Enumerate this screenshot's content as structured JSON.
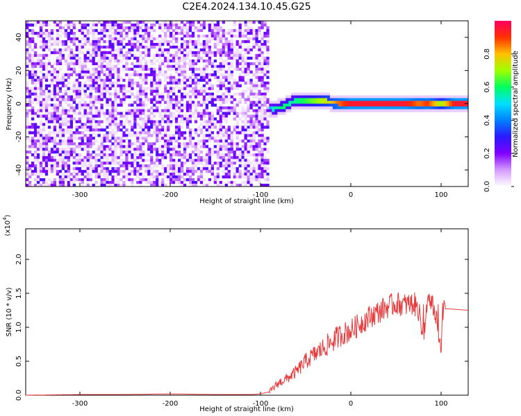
{
  "title": "C2E4.2024.134.10.45.G25",
  "chart_data": [
    {
      "type": "heatmap",
      "title": "C2E4.2024.134.10.45.G25",
      "xlabel": "Height of straight line (km)",
      "ylabel": "Frequency (Hz)",
      "xlim": [
        -360,
        130
      ],
      "ylim": [
        -50,
        50
      ],
      "x_ticks": [
        -300,
        -200,
        -100,
        0,
        100
      ],
      "y_ticks": [
        -40,
        -20,
        0,
        20,
        40
      ],
      "colorbar": {
        "label": "Normalized spectral amplitude",
        "range": [
          0,
          1
        ],
        "ticks": [
          "0.0",
          "0.2",
          "0.4",
          "0.6",
          "0.8"
        ],
        "colormap": [
          "#ffffff",
          "#d59bff",
          "#7f00ff",
          "#2a1aff",
          "#0080ff",
          "#00e0ff",
          "#00ff60",
          "#a0ff00",
          "#ffc000",
          "#ff3000",
          "#ff0060"
        ]
      },
      "noise_region_x": [
        -360,
        -90
      ],
      "noise_level": 0.15,
      "signal_band_x": [
        -90,
        130
      ],
      "signal_trace": [
        {
          "x": -95,
          "freq": -2,
          "amp": 0.35
        },
        {
          "x": -85,
          "freq": -3,
          "amp": 0.55
        },
        {
          "x": -75,
          "freq": -2,
          "amp": 0.6
        },
        {
          "x": -65,
          "freq": 1,
          "amp": 0.55
        },
        {
          "x": -55,
          "freq": 2,
          "amp": 0.6
        },
        {
          "x": -45,
          "freq": 2,
          "amp": 0.65
        },
        {
          "x": -35,
          "freq": 2,
          "amp": 0.7
        },
        {
          "x": -25,
          "freq": 1,
          "amp": 0.75
        },
        {
          "x": -15,
          "freq": 0.5,
          "amp": 0.85
        },
        {
          "x": 0,
          "freq": 0,
          "amp": 0.95
        },
        {
          "x": 20,
          "freq": 0,
          "amp": 0.95
        },
        {
          "x": 40,
          "freq": 0,
          "amp": 0.95
        },
        {
          "x": 60,
          "freq": 0,
          "amp": 0.95
        },
        {
          "x": 75,
          "freq": 0,
          "amp": 0.85
        },
        {
          "x": 85,
          "freq": 0,
          "amp": 0.9
        },
        {
          "x": 100,
          "freq": 0,
          "amp": 0.7
        },
        {
          "x": 115,
          "freq": 0,
          "amp": 0.95
        },
        {
          "x": 130,
          "freq": 0,
          "amp": 0.95
        }
      ],
      "grid": false
    },
    {
      "type": "line",
      "xlabel": "Height of straight line (km)",
      "ylabel": "SNR (10 * v/v)",
      "y_multiplier_label": "(x10",
      "y_multiplier_exponent": "4",
      "y_multiplier_close": ")",
      "xlim": [
        -360,
        130
      ],
      "ylim": [
        0,
        2.45
      ],
      "x_ticks": [
        -300,
        -200,
        -100,
        0,
        100
      ],
      "y_ticks": [
        0.0,
        0.5,
        1.0,
        1.5,
        2.0
      ],
      "y_tick_labels": [
        "0.0",
        "0.5",
        "1.0",
        "1.5",
        "2.0"
      ],
      "series": [
        {
          "color": "#e8383a",
          "x": [
            -360,
            -300,
            -250,
            -200,
            -150,
            -110,
            -100,
            -90,
            -80,
            -70,
            -60,
            -50,
            -40,
            -30,
            -20,
            -10,
            0,
            10,
            20,
            30,
            40,
            50,
            60,
            70,
            75,
            80,
            85,
            90,
            95,
            100,
            102,
            105,
            110,
            120,
            130
          ],
          "y": [
            0.0,
            0.01,
            0.01,
            0.02,
            0.01,
            0.01,
            0.02,
            0.05,
            0.18,
            0.25,
            0.35,
            0.5,
            0.6,
            0.7,
            0.8,
            0.9,
            0.95,
            1.05,
            1.15,
            1.22,
            1.3,
            1.35,
            1.33,
            1.35,
            1.25,
            0.9,
            1.3,
            1.35,
            1.05,
            0.6,
            1.5,
            1.27,
            1.27,
            1.26,
            1.25
          ]
        }
      ],
      "grid": false
    }
  ]
}
